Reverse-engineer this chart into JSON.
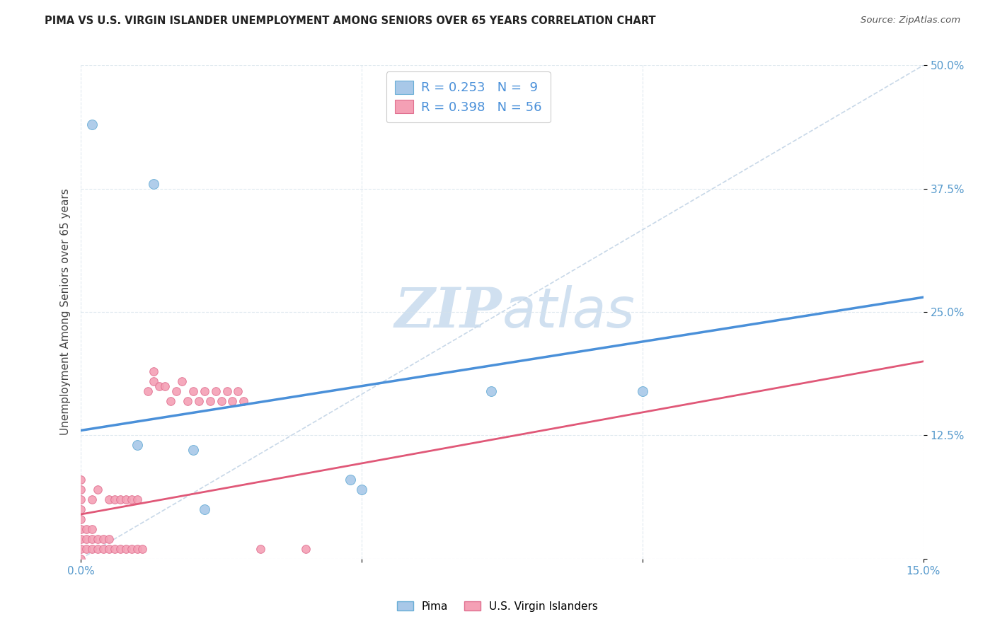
{
  "title": "PIMA VS U.S. VIRGIN ISLANDER UNEMPLOYMENT AMONG SENIORS OVER 65 YEARS CORRELATION CHART",
  "source": "Source: ZipAtlas.com",
  "ylabel": "Unemployment Among Seniors over 65 years",
  "xlim": [
    0.0,
    0.15
  ],
  "ylim": [
    0.0,
    0.5
  ],
  "xticks": [
    0.0,
    0.05,
    0.1,
    0.15
  ],
  "xtick_labels": [
    "0.0%",
    "",
    "",
    "15.0%"
  ],
  "ytick_labels": [
    "",
    "12.5%",
    "25.0%",
    "37.5%",
    "50.0%"
  ],
  "yticks": [
    0.0,
    0.125,
    0.25,
    0.375,
    0.5
  ],
  "pima_color": "#a8c8e8",
  "pima_edge_color": "#6aaed6",
  "vi_color": "#f4a0b5",
  "vi_edge_color": "#e07090",
  "trendline_pima_color": "#4a90d9",
  "trendline_vi_color": "#e05878",
  "diagonal_color": "#c8d8e8",
  "watermark_color": "#d0e0f0",
  "legend_R_pima": "0.253",
  "legend_N_pima": " 9",
  "legend_R_vi": "0.398",
  "legend_N_vi": "56",
  "pima_marker_size": 100,
  "vi_marker_size": 70,
  "pima_x": [
    0.002,
    0.01,
    0.013,
    0.02,
    0.022,
    0.048,
    0.05,
    0.073,
    0.1
  ],
  "pima_y": [
    0.44,
    0.115,
    0.38,
    0.11,
    0.05,
    0.08,
    0.07,
    0.17,
    0.17
  ],
  "vi_x": [
    0.0,
    0.0,
    0.0,
    0.0,
    0.0,
    0.0,
    0.0,
    0.0,
    0.0,
    0.001,
    0.001,
    0.001,
    0.002,
    0.002,
    0.002,
    0.002,
    0.003,
    0.003,
    0.003,
    0.004,
    0.004,
    0.005,
    0.005,
    0.005,
    0.006,
    0.006,
    0.007,
    0.007,
    0.008,
    0.008,
    0.009,
    0.009,
    0.01,
    0.01,
    0.011,
    0.012,
    0.013,
    0.013,
    0.014,
    0.015,
    0.016,
    0.017,
    0.018,
    0.019,
    0.02,
    0.021,
    0.022,
    0.023,
    0.024,
    0.025,
    0.026,
    0.027,
    0.028,
    0.029,
    0.032,
    0.04
  ],
  "vi_y": [
    0.0,
    0.01,
    0.02,
    0.03,
    0.04,
    0.05,
    0.06,
    0.07,
    0.08,
    0.01,
    0.02,
    0.03,
    0.01,
    0.02,
    0.03,
    0.06,
    0.01,
    0.02,
    0.07,
    0.01,
    0.02,
    0.01,
    0.02,
    0.06,
    0.01,
    0.06,
    0.01,
    0.06,
    0.01,
    0.06,
    0.01,
    0.06,
    0.01,
    0.06,
    0.01,
    0.17,
    0.18,
    0.19,
    0.175,
    0.175,
    0.16,
    0.17,
    0.18,
    0.16,
    0.17,
    0.16,
    0.17,
    0.16,
    0.17,
    0.16,
    0.17,
    0.16,
    0.17,
    0.16,
    0.01,
    0.01
  ],
  "pima_trendline_x": [
    0.0,
    0.15
  ],
  "pima_trendline_y": [
    0.13,
    0.265
  ],
  "vi_trendline_x": [
    0.0,
    0.15
  ],
  "vi_trendline_y": [
    0.045,
    0.2
  ]
}
